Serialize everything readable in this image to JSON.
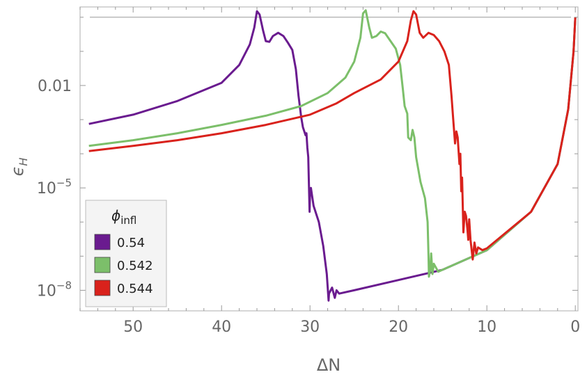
{
  "chart_data": {
    "type": "line",
    "title": "",
    "xlabel": "ΔN",
    "ylabel": "ϵH",
    "x_reversed": true,
    "xlim": [
      56,
      -0.3
    ],
    "ylim": [
      2.5e-09,
      2.0
    ],
    "y_scale": "log",
    "grid": false,
    "x_ticks": [
      50,
      40,
      30,
      20,
      10,
      0
    ],
    "y_ticks": [
      {
        "value": 0.01,
        "label": "0.01"
      },
      {
        "value": 1e-05,
        "label_base": "10",
        "label_exp": "−5"
      },
      {
        "value": 1e-08,
        "label_base": "10",
        "label_exp": "−8"
      }
    ],
    "reference_line": {
      "y": 1.0
    },
    "legend": {
      "title": "ϕ",
      "title_sub": "infl",
      "placement": "bottom-left"
    },
    "series": [
      {
        "name": "0.54",
        "color": "#6a1b8f",
        "points": [
          [
            55,
            0.00075
          ],
          [
            50,
            0.0014
          ],
          [
            45,
            0.0035
          ],
          [
            40,
            0.012
          ],
          [
            38,
            0.04
          ],
          [
            36.8,
            0.16
          ],
          [
            36.3,
            0.5
          ],
          [
            36,
            1.5
          ],
          [
            35.7,
            1.2
          ],
          [
            35.3,
            0.4
          ],
          [
            35,
            0.2
          ],
          [
            34.6,
            0.19
          ],
          [
            34.2,
            0.28
          ],
          [
            33.6,
            0.35
          ],
          [
            33,
            0.28
          ],
          [
            32.5,
            0.18
          ],
          [
            32,
            0.11
          ],
          [
            31.6,
            0.03
          ],
          [
            31.3,
            0.005
          ],
          [
            31,
            0.0012
          ],
          [
            30.8,
            0.0006
          ],
          [
            30.5,
            0.00035
          ],
          [
            30.4,
            0.0004
          ],
          [
            30.3,
            0.00015
          ],
          [
            30.2,
            8e-05
          ],
          [
            30.05,
            2e-06
          ],
          [
            30,
            6e-06
          ],
          [
            29.9,
            1e-05
          ],
          [
            29.6,
            3e-06
          ],
          [
            29,
            1e-06
          ],
          [
            28.5,
            2e-07
          ],
          [
            28.1,
            3e-08
          ],
          [
            27.9,
            5e-09
          ],
          [
            27.85,
            8e-09
          ],
          [
            27.5,
            1.2e-08
          ],
          [
            27.2,
            6e-09
          ],
          [
            27,
            1e-08
          ],
          [
            26.7,
            8e-09
          ],
          [
            25,
            1e-08
          ],
          [
            20,
            2e-08
          ],
          [
            15,
            4e-08
          ],
          [
            10,
            1.5e-07
          ],
          [
            5,
            2e-06
          ],
          [
            2,
            5e-05
          ],
          [
            0.8,
            0.002
          ],
          [
            0.2,
            0.1
          ],
          [
            0,
            1.0
          ]
        ]
      },
      {
        "name": "0.542",
        "color": "#7cbf6a",
        "points": [
          [
            55,
            0.00017
          ],
          [
            50,
            0.00025
          ],
          [
            45,
            0.0004
          ],
          [
            40,
            0.0007
          ],
          [
            35,
            0.0013
          ],
          [
            31,
            0.0025
          ],
          [
            28,
            0.006
          ],
          [
            26,
            0.017
          ],
          [
            25,
            0.05
          ],
          [
            24.3,
            0.25
          ],
          [
            24,
            1.3
          ],
          [
            23.7,
            1.6
          ],
          [
            23.3,
            0.5
          ],
          [
            23,
            0.25
          ],
          [
            22.5,
            0.28
          ],
          [
            22,
            0.38
          ],
          [
            21.5,
            0.34
          ],
          [
            21,
            0.22
          ],
          [
            20.3,
            0.12
          ],
          [
            19.8,
            0.04
          ],
          [
            19.5,
            0.008
          ],
          [
            19.3,
            0.0025
          ],
          [
            19,
            0.0015
          ],
          [
            18.9,
            0.0003
          ],
          [
            18.6,
            0.00025
          ],
          [
            18.4,
            0.0005
          ],
          [
            18.2,
            0.0003
          ],
          [
            18,
            8e-05
          ],
          [
            17.5,
            1.5e-05
          ],
          [
            17,
            5e-06
          ],
          [
            16.7,
            1e-06
          ],
          [
            16.6,
            1e-07
          ],
          [
            16.55,
            2.5e-08
          ],
          [
            16.4,
            4e-08
          ],
          [
            16.3,
            1.2e-07
          ],
          [
            16.15,
            3e-08
          ],
          [
            16,
            6e-08
          ],
          [
            15.5,
            3.5e-08
          ],
          [
            15,
            4e-08
          ],
          [
            10,
            1.5e-07
          ],
          [
            5,
            2e-06
          ],
          [
            2,
            5e-05
          ],
          [
            0.8,
            0.002
          ],
          [
            0.2,
            0.1
          ],
          [
            0,
            1.0
          ]
        ]
      },
      {
        "name": "0.544",
        "color": "#d9221c",
        "points": [
          [
            55,
            0.00012
          ],
          [
            50,
            0.00017
          ],
          [
            45,
            0.00025
          ],
          [
            40,
            0.0004
          ],
          [
            35,
            0.0007
          ],
          [
            30,
            0.0014
          ],
          [
            27,
            0.003
          ],
          [
            25,
            0.006
          ],
          [
            22,
            0.015
          ],
          [
            20,
            0.05
          ],
          [
            19,
            0.2
          ],
          [
            18.6,
            0.8
          ],
          [
            18.3,
            1.5
          ],
          [
            18,
            1.2
          ],
          [
            17.6,
            0.35
          ],
          [
            17.2,
            0.25
          ],
          [
            16.6,
            0.35
          ],
          [
            16,
            0.3
          ],
          [
            15.4,
            0.2
          ],
          [
            14.8,
            0.1
          ],
          [
            14.3,
            0.04
          ],
          [
            14,
            0.005
          ],
          [
            13.8,
            0.001
          ],
          [
            13.6,
            0.0002
          ],
          [
            13.45,
            0.00045
          ],
          [
            13.3,
            0.0003
          ],
          [
            13.1,
            5e-05
          ],
          [
            13,
            0.0001
          ],
          [
            12.9,
            8e-06
          ],
          [
            12.8,
            2e-05
          ],
          [
            12.65,
            5e-07
          ],
          [
            12.5,
            2e-06
          ],
          [
            12.35,
            1.5e-06
          ],
          [
            12.2,
            6e-07
          ],
          [
            12.1,
            3e-07
          ],
          [
            12,
            1.2e-06
          ],
          [
            11.85,
            3e-07
          ],
          [
            11.6,
            8e-08
          ],
          [
            11.4,
            2.5e-07
          ],
          [
            11.2,
            1.2e-07
          ],
          [
            11,
            1.8e-07
          ],
          [
            10.5,
            1.5e-07
          ],
          [
            10,
            1.7e-07
          ],
          [
            5,
            2e-06
          ],
          [
            2,
            5e-05
          ],
          [
            0.8,
            0.002
          ],
          [
            0.2,
            0.1
          ],
          [
            0,
            1.0
          ]
        ]
      }
    ]
  }
}
